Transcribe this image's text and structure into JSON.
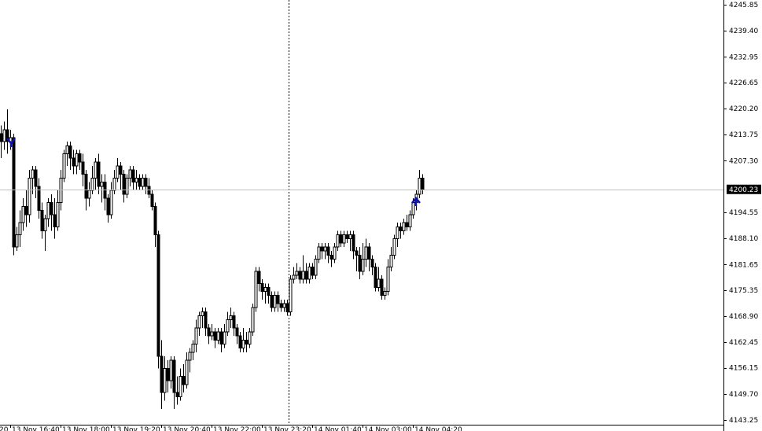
{
  "chart_data": {
    "type": "candlestick",
    "open": [
      4214,
      4212,
      4215,
      4212,
      4213,
      4186,
      4189,
      4192,
      4196,
      4194,
      4203,
      4205,
      4201,
      4195,
      4190,
      4193,
      4197,
      4194,
      4191,
      4197,
      4203,
      4209,
      4211,
      4208,
      4206,
      4209,
      4207,
      4204,
      4198,
      4200,
      4203,
      4207,
      4201,
      4202,
      4198,
      4194,
      4200,
      4203,
      4206,
      4204,
      4199,
      4203,
      4205,
      4202,
      4203,
      4201,
      4203,
      4201,
      4199,
      4196,
      4189,
      4159,
      4150,
      4156,
      4153,
      4158,
      4150,
      4149,
      4154,
      4152,
      4158,
      4160,
      4162,
      4166,
      4169,
      4170,
      4166,
      4164,
      4165,
      4163,
      4165,
      4162,
      4165,
      4168,
      4169,
      4166,
      4164,
      4161,
      4163,
      4162,
      4165,
      4171,
      4180,
      4177,
      4175,
      4176,
      4174,
      4171,
      4174,
      4172,
      4171,
      4172,
      4170,
      4178,
      4179,
      4180,
      4178,
      4180,
      4178,
      4181,
      4179,
      4183,
      4186,
      4185,
      4186,
      4184,
      4183,
      4186,
      4189,
      4187,
      4189,
      4188,
      4189,
      4185,
      4184,
      4180,
      4183,
      4186,
      4183,
      4181,
      4176,
      4178,
      4174,
      4175,
      4181,
      4184,
      4188,
      4191,
      4190,
      4192,
      4191,
      4194,
      4197,
      4199,
      4203
    ],
    "high": [
      4216,
      4217,
      4220,
      4215,
      4214,
      4191,
      4195,
      4198,
      4200,
      4205,
      4206,
      4206,
      4203,
      4197,
      4194,
      4198,
      4199,
      4198,
      4200,
      4205,
      4210,
      4212,
      4212,
      4210,
      4210,
      4210,
      4209,
      4205,
      4202,
      4206,
      4208,
      4209,
      4204,
      4204,
      4199,
      4202,
      4205,
      4208,
      4207,
      4205,
      4204,
      4206,
      4206,
      4205,
      4204,
      4204,
      4204,
      4203,
      4200,
      4197,
      4190,
      4163,
      4159,
      4158,
      4159,
      4159,
      4154,
      4156,
      4157,
      4160,
      4161,
      4163,
      4168,
      4170,
      4171,
      4171,
      4167,
      4167,
      4166,
      4166,
      4166,
      4167,
      4170,
      4171,
      4170,
      4167,
      4165,
      4166,
      4165,
      4166,
      4172,
      4181,
      4181,
      4178,
      4177,
      4177,
      4175,
      4175,
      4175,
      4173,
      4173,
      4173,
      4179,
      4181,
      4182,
      4181,
      4184,
      4182,
      4182,
      4182,
      4184,
      4187,
      4187,
      4187,
      4187,
      4185,
      4187,
      4190,
      4190,
      4190,
      4190,
      4190,
      4190,
      4186,
      4186,
      4187,
      4188,
      4187,
      4184,
      4182,
      4181,
      4179,
      4176,
      4183,
      4186,
      4189,
      4192,
      4192,
      4193,
      4194,
      4195,
      4198,
      4200,
      4205,
      4204
    ],
    "low": [
      4208,
      4210,
      4209,
      4210,
      4184,
      4185,
      4186,
      4190,
      4191,
      4192,
      4199,
      4198,
      4193,
      4188,
      4185,
      4191,
      4190,
      4188,
      4190,
      4195,
      4202,
      4206,
      4205,
      4204,
      4204,
      4205,
      4201,
      4195,
      4196,
      4199,
      4200,
      4199,
      4197,
      4195,
      4192,
      4193,
      4199,
      4202,
      4200,
      4197,
      4198,
      4201,
      4200,
      4200,
      4200,
      4200,
      4199,
      4198,
      4195,
      4186,
      4156,
      4146,
      4148,
      4150,
      4151,
      4146,
      4147,
      4148,
      4150,
      4151,
      4155,
      4158,
      4160,
      4164,
      4166,
      4164,
      4162,
      4163,
      4161,
      4162,
      4160,
      4161,
      4164,
      4166,
      4164,
      4162,
      4160,
      4160,
      4160,
      4161,
      4164,
      4170,
      4175,
      4173,
      4172,
      4172,
      4170,
      4170,
      4170,
      4170,
      4170,
      4169,
      4169,
      4177,
      4178,
      4177,
      4177,
      4177,
      4177,
      4178,
      4178,
      4182,
      4183,
      4183,
      4182,
      4181,
      4182,
      4185,
      4186,
      4186,
      4187,
      4185,
      4183,
      4180,
      4178,
      4179,
      4181,
      4180,
      4179,
      4175,
      4175,
      4173,
      4173,
      4174,
      4180,
      4183,
      4186,
      4188,
      4189,
      4190,
      4190,
      4193,
      4195,
      4198,
      4199
    ],
    "close": [
      4212,
      4215,
      4212,
      4213,
      4186,
      4189,
      4192,
      4196,
      4194,
      4203,
      4205,
      4201,
      4195,
      4190,
      4193,
      4197,
      4194,
      4191,
      4197,
      4203,
      4209,
      4211,
      4208,
      4206,
      4209,
      4207,
      4204,
      4198,
      4200,
      4203,
      4207,
      4201,
      4202,
      4198,
      4194,
      4200,
      4203,
      4206,
      4204,
      4199,
      4203,
      4205,
      4202,
      4203,
      4201,
      4203,
      4201,
      4199,
      4196,
      4189,
      4159,
      4150,
      4156,
      4153,
      4158,
      4150,
      4149,
      4154,
      4152,
      4158,
      4160,
      4162,
      4166,
      4169,
      4170,
      4166,
      4164,
      4165,
      4163,
      4165,
      4162,
      4165,
      4168,
      4169,
      4166,
      4164,
      4161,
      4163,
      4162,
      4165,
      4171,
      4180,
      4177,
      4175,
      4176,
      4174,
      4171,
      4174,
      4172,
      4171,
      4172,
      4170,
      4178,
      4179,
      4180,
      4178,
      4180,
      4178,
      4181,
      4179,
      4183,
      4186,
      4185,
      4186,
      4184,
      4183,
      4186,
      4189,
      4187,
      4189,
      4188,
      4189,
      4185,
      4184,
      4180,
      4183,
      4186,
      4183,
      4181,
      4176,
      4178,
      4174,
      4175,
      4181,
      4184,
      4188,
      4191,
      4190,
      4192,
      4191,
      4194,
      4197,
      4199,
      4203,
      4200.23
    ],
    "last_price": 4200.23,
    "ylim": [
      4142.08,
      4247.02
    ],
    "yticks": [
      4245.85,
      {
        "value": 4239.4,
        "label": "4239.40"
      },
      4232.95,
      4226.65,
      {
        "value": 4220.2,
        "label": "4220.20"
      },
      4213.75,
      {
        "value": 4207.3,
        "label": "4207.30"
      },
      4194.55,
      {
        "value": 4188.1,
        "label": "4188.10"
      },
      4181.65,
      4175.35,
      {
        "value": 4168.9,
        "label": "4168.90"
      },
      4162.45,
      4156.15,
      {
        "value": 4149.7,
        "label": "4149.70"
      },
      4143.25
    ],
    "xticks": [
      {
        "value": -1,
        "label": "20"
      },
      {
        "value": 3,
        "label": "13 Nov 16:40"
      },
      {
        "value": 19,
        "label": "13 Nov 18:00"
      },
      {
        "value": 35,
        "label": "13 Nov 19:20"
      },
      {
        "value": 51,
        "label": "13 Nov 20:40"
      },
      {
        "value": 67,
        "label": "13 Nov 22:00"
      },
      {
        "value": 83,
        "label": "13 Nov 23:20"
      },
      {
        "value": 99,
        "label": "14 Nov 01:40"
      },
      {
        "value": 115,
        "label": "14 Nov 03:00"
      },
      {
        "value": 131,
        "label": "14 Nov 04:20"
      }
    ],
    "up_color": "#ffffff",
    "down_color": "#000000",
    "line_color": "#000000"
  }
}
